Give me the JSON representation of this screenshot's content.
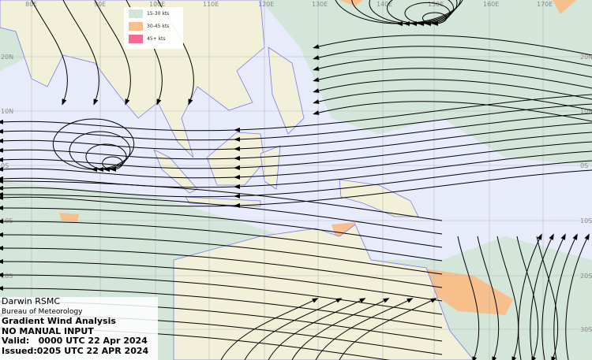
{
  "colors": {
    "ocean": "#e8ecfa",
    "land": "#f2f0d8",
    "coast": "#7a7cf0",
    "grid": "#b8b8b8",
    "streamline": "#000000"
  },
  "legend": {
    "items": [
      {
        "label": "15-30 kts",
        "color": "#d3e6d9"
      },
      {
        "label": "30-45 kts",
        "color": "#f7bf8c"
      },
      {
        "label": "45+ kts",
        "color": "#f2628f"
      }
    ]
  },
  "axes": {
    "longitudes": [
      "80E",
      "90E",
      "100E",
      "110E",
      "120E",
      "130E",
      "140E",
      "150E",
      "160E",
      "170E"
    ],
    "latitudes": [
      "20N",
      "10N",
      "0S",
      "10S",
      "20S",
      "30S"
    ]
  },
  "info": {
    "center": "Darwin RSMC",
    "agency": "Bureau of Meteorology",
    "product": "Gradient Wind Analysis",
    "note": "NO MANUAL INPUT",
    "valid": "Valid:   0000 UTC 22 Apr 2024",
    "issued": "Issued:0205 UTC 22 APR 2024"
  }
}
